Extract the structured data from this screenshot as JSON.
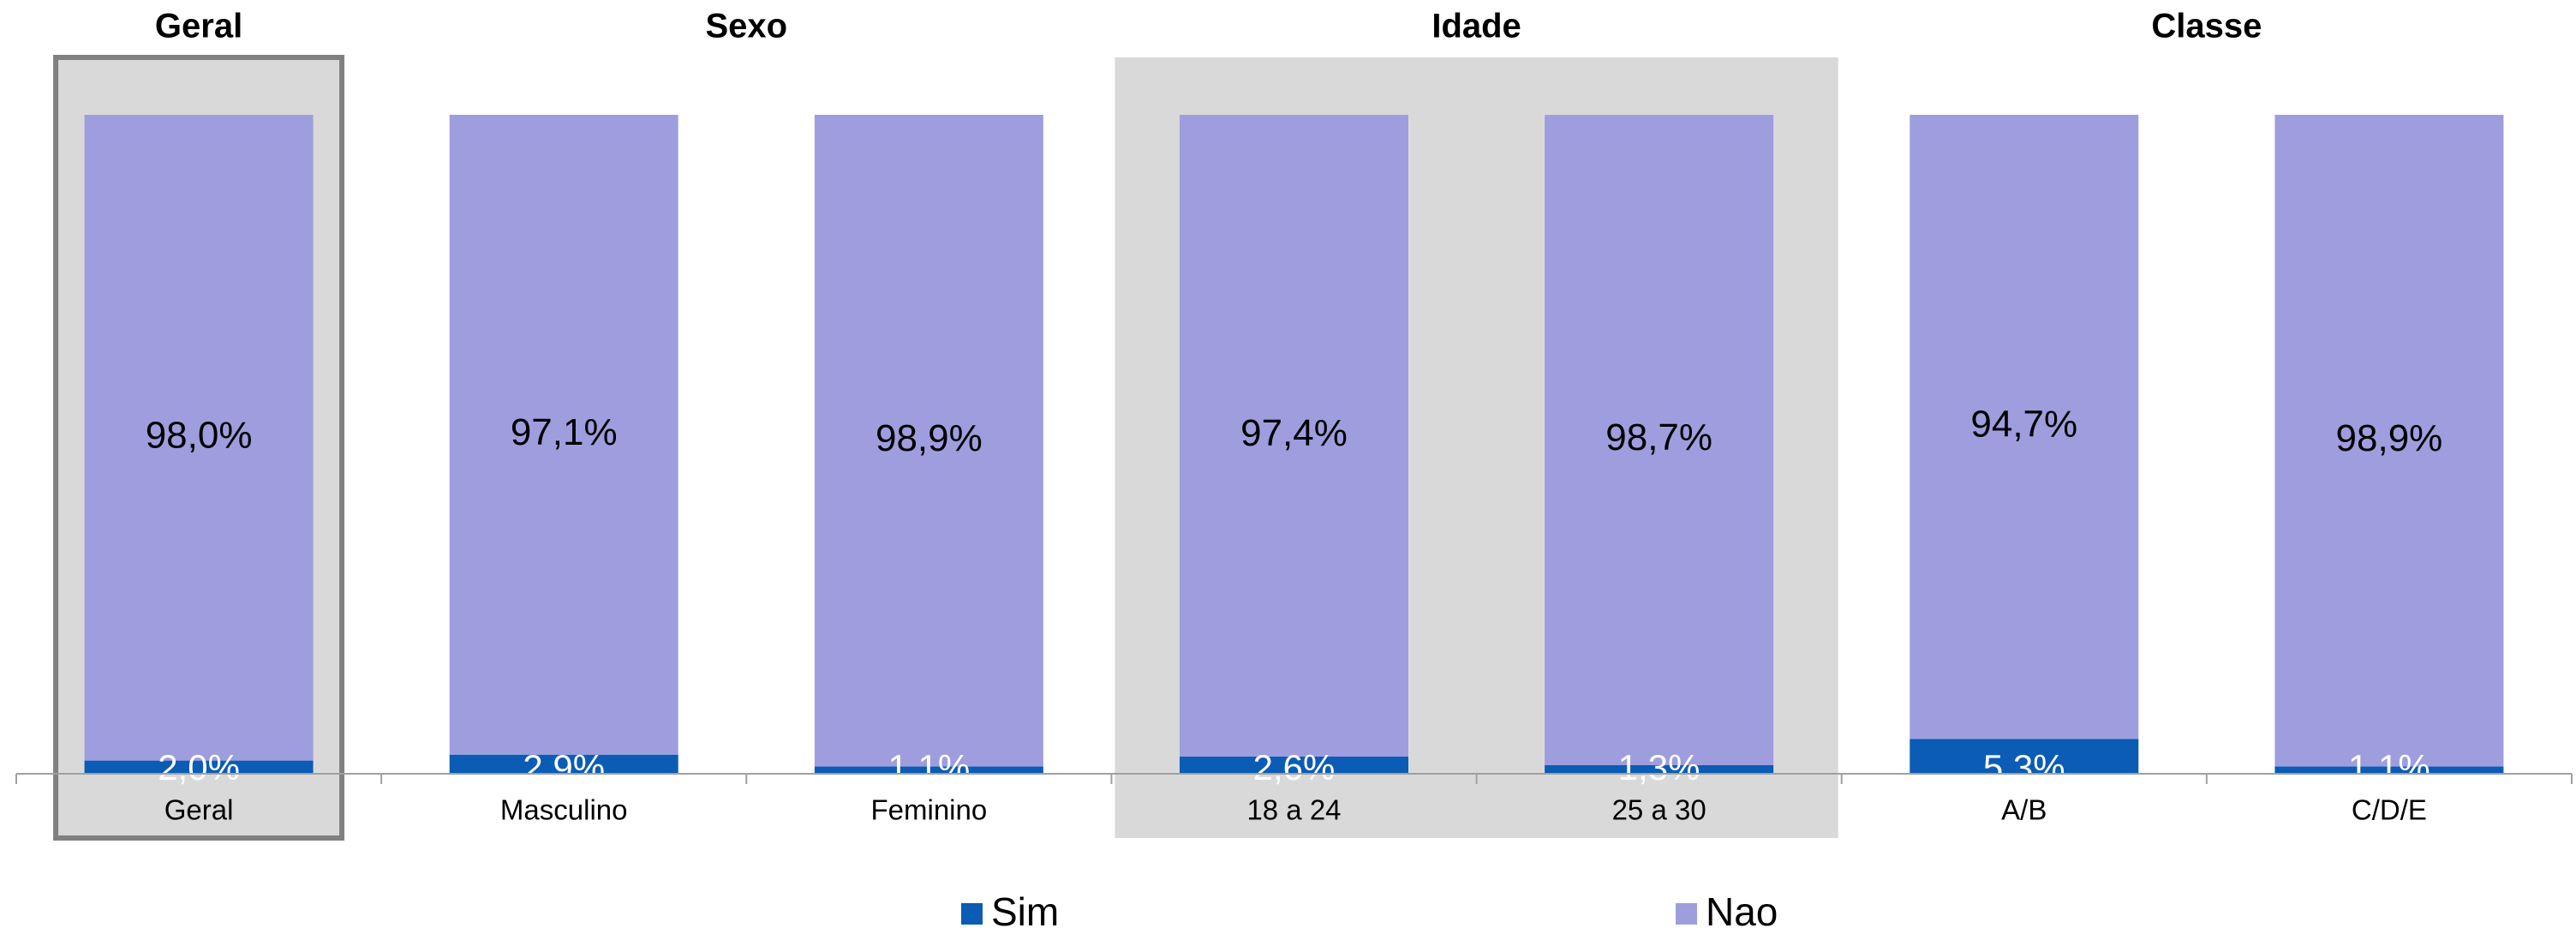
{
  "chart_data": {
    "type": "stacked_bar",
    "categories": [
      "Geral",
      "Masculino",
      "Feminino",
      "18 a 24",
      "25 a 30",
      "A/B",
      "C/D/E"
    ],
    "groups": [
      {
        "name": "Geral",
        "categories": [
          "Geral"
        ]
      },
      {
        "name": "Sexo",
        "categories": [
          "Masculino",
          "Feminino"
        ]
      },
      {
        "name": "Idade",
        "categories": [
          "18 a 24",
          "25 a 30"
        ]
      },
      {
        "name": "Classe",
        "categories": [
          "A/B",
          "C/D/E"
        ]
      }
    ],
    "series": [
      {
        "name": "Sim",
        "color": "#0b5cb5",
        "values": [
          2.0,
          2.9,
          1.1,
          2.6,
          1.3,
          5.3,
          1.1
        ],
        "value_labels": [
          "2,0%",
          "2,9%",
          "1,1%",
          "2,6%",
          "1,3%",
          "5,3%",
          "1,1%"
        ]
      },
      {
        "name": "Nao",
        "color": "#9e9ede",
        "values": [
          98.0,
          97.1,
          98.9,
          97.4,
          98.7,
          94.7,
          98.9
        ],
        "value_labels": [
          "98,0%",
          "97,1%",
          "98,9%",
          "97,4%",
          "98,7%",
          "94,7%",
          "98,9%"
        ]
      }
    ],
    "ylim": [
      0,
      100
    ],
    "legend": "bottom"
  }
}
